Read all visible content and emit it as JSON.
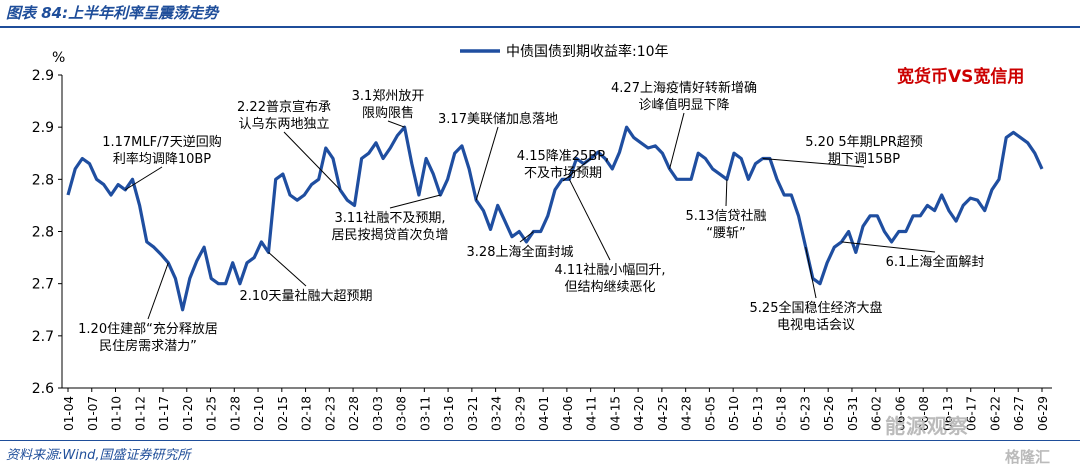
{
  "header": {
    "title": "图表 84:上半年利率呈震荡走势"
  },
  "footer": {
    "source": "资料来源:Wind,国盛证券研究所"
  },
  "watermarks": [
    "能源观察",
    "格隆汇"
  ],
  "chart_data": {
    "type": "line",
    "ylabel": "%",
    "ylim": [
      2.6,
      2.9
    ],
    "ytick_labels": [
      "2.9",
      "2.9",
      "2.8",
      "2.8",
      "2.7",
      "2.7",
      "2.6"
    ],
    "grid": false,
    "legend": {
      "placement": "top-center",
      "entries": [
        "中债国债到期收益率:10年"
      ]
    },
    "corner_label": {
      "text": "宽货币VS宽信用",
      "color": "#cc0000"
    },
    "line_color": "#1f4ea0",
    "x_tick_labels": [
      "01-04",
      "01-07",
      "01-10",
      "01-12",
      "01-17",
      "01-20",
      "01-25",
      "01-28",
      "02-10",
      "02-15",
      "02-18",
      "02-23",
      "02-28",
      "03-03",
      "03-08",
      "03-11",
      "03-16",
      "03-21",
      "03-24",
      "03-29",
      "04-01",
      "04-06",
      "04-11",
      "04-15",
      "04-20",
      "04-25",
      "04-28",
      "05-05",
      "05-10",
      "05-13",
      "05-18",
      "05-23",
      "05-26",
      "05-31",
      "06-02",
      "06-06",
      "06-08",
      "06-13",
      "06-17",
      "06-22",
      "06-27",
      "06-29"
    ],
    "series": [
      {
        "name": "中债国债到期收益率:10年",
        "values": [
          2.785,
          2.81,
          2.82,
          2.815,
          2.8,
          2.795,
          2.785,
          2.795,
          2.79,
          2.8,
          2.775,
          2.74,
          2.735,
          2.728,
          2.72,
          2.705,
          2.675,
          2.705,
          2.722,
          2.735,
          2.705,
          2.7,
          2.7,
          2.72,
          2.7,
          2.72,
          2.725,
          2.74,
          2.73,
          2.8,
          2.805,
          2.785,
          2.78,
          2.785,
          2.795,
          2.8,
          2.83,
          2.82,
          2.79,
          2.78,
          2.775,
          2.82,
          2.825,
          2.835,
          2.82,
          2.83,
          2.842,
          2.85,
          2.815,
          2.785,
          2.82,
          2.805,
          2.785,
          2.8,
          2.825,
          2.832,
          2.81,
          2.78,
          2.77,
          2.752,
          2.775,
          2.76,
          2.745,
          2.75,
          2.74,
          2.75,
          2.75,
          2.765,
          2.79,
          2.8,
          2.8,
          2.82,
          2.815,
          2.82,
          2.826,
          2.82,
          2.81,
          2.826,
          2.85,
          2.84,
          2.835,
          2.83,
          2.832,
          2.825,
          2.81,
          2.8,
          2.8,
          2.8,
          2.825,
          2.82,
          2.81,
          2.805,
          2.8,
          2.825,
          2.82,
          2.8,
          2.815,
          2.82,
          2.82,
          2.8,
          2.785,
          2.785,
          2.765,
          2.735,
          2.705,
          2.7,
          2.72,
          2.735,
          2.74,
          2.75,
          2.73,
          2.755,
          2.765,
          2.765,
          2.75,
          2.74,
          2.75,
          2.75,
          2.765,
          2.765,
          2.775,
          2.77,
          2.785,
          2.77,
          2.76,
          2.775,
          2.782,
          2.78,
          2.77,
          2.79,
          2.8,
          2.84,
          2.845,
          2.84,
          2.835,
          2.825,
          2.81
        ]
      }
    ],
    "annotations": [
      {
        "lines": [
          "1.17MLF/7天逆回购",
          "利率均调降10BP"
        ],
        "target_index": 8
      },
      {
        "lines": [
          "1.20住建部“充分释放居",
          "民住房需求潜力”"
        ],
        "target_index": 14
      },
      {
        "lines": [
          "2.10天量社融大超预期"
        ],
        "target_index": 28
      },
      {
        "lines": [
          "2.22普京宣布承",
          "认乌东两地独立"
        ],
        "target_index": 38
      },
      {
        "lines": [
          "3.1郑州放开",
          "限购限售"
        ],
        "target_index": 47
      },
      {
        "lines": [
          "3.11社融不及预期,",
          "居民按揭贷首次负增"
        ],
        "target_index": 52
      },
      {
        "lines": [
          "3.17美联储加息落地"
        ],
        "target_index": 57
      },
      {
        "lines": [
          "3.28上海全面封城"
        ],
        "target_index": 65
      },
      {
        "lines": [
          "4.15降准25BP,",
          "不及市场预期"
        ],
        "target_index": 73
      },
      {
        "lines": [
          "4.11社融小幅回升,",
          "但结构继续恶化"
        ],
        "target_index": 70
      },
      {
        "lines": [
          "4.27上海疫情好转新增确",
          "诊峰值明显下降"
        ],
        "target_index": 84
      },
      {
        "lines": [
          "5.13信贷社融",
          "“腰斩”"
        ],
        "target_index": 92
      },
      {
        "lines": [
          "5.20 5年期LPR超预",
          "期下调15BP"
        ],
        "target_index": 97
      },
      {
        "lines": [
          "5.25全国稳住经济大盘",
          "电视电话会议"
        ],
        "target_index": 103
      },
      {
        "lines": [
          "6.1上海全面解封"
        ],
        "target_index": 108
      }
    ]
  }
}
